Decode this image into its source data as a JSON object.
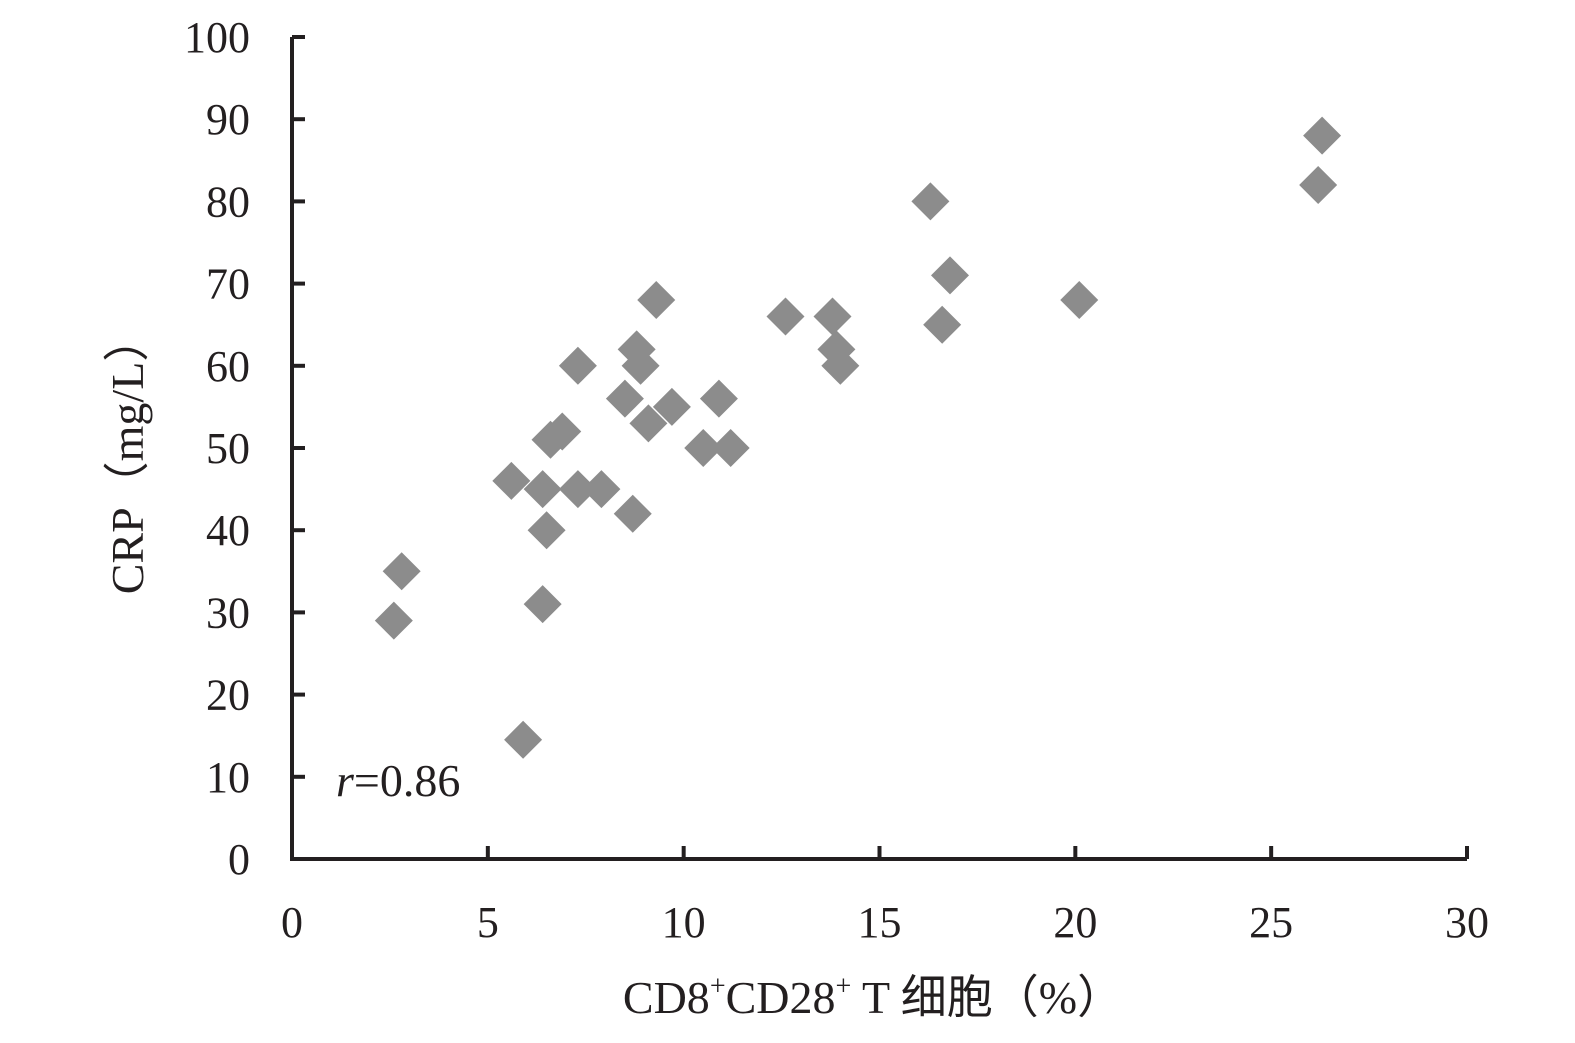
{
  "chart_data": {
    "type": "scatter",
    "title": "",
    "xlabel_parts": {
      "a": "CD8",
      "sup1": "+",
      "b": "CD28",
      "sup2": "+",
      "c": " T 细胞（%）"
    },
    "ylabel": "CRP（mg/L）",
    "xlim": [
      0,
      30
    ],
    "ylim": [
      0,
      100
    ],
    "x_ticks": [
      0,
      5,
      10,
      15,
      20,
      25,
      30
    ],
    "y_ticks": [
      0,
      10,
      20,
      30,
      40,
      50,
      60,
      70,
      80,
      90,
      100
    ],
    "grid": false,
    "legend": "none",
    "marker": "diamond",
    "marker_color": "#8c8c8c",
    "annotation": {
      "italic": "r",
      "rest": "=0.86"
    },
    "series": [
      {
        "points": [
          {
            "x": 2.6,
            "y": 29
          },
          {
            "x": 2.8,
            "y": 35
          },
          {
            "x": 5.6,
            "y": 46
          },
          {
            "x": 5.9,
            "y": 14.5
          },
          {
            "x": 6.4,
            "y": 31
          },
          {
            "x": 6.4,
            "y": 45
          },
          {
            "x": 6.5,
            "y": 40
          },
          {
            "x": 6.6,
            "y": 51
          },
          {
            "x": 6.9,
            "y": 52
          },
          {
            "x": 7.3,
            "y": 45
          },
          {
            "x": 7.3,
            "y": 60
          },
          {
            "x": 7.9,
            "y": 45
          },
          {
            "x": 8.5,
            "y": 56
          },
          {
            "x": 8.7,
            "y": 42
          },
          {
            "x": 8.8,
            "y": 62
          },
          {
            "x": 8.9,
            "y": 60
          },
          {
            "x": 9.1,
            "y": 53
          },
          {
            "x": 9.3,
            "y": 68
          },
          {
            "x": 9.7,
            "y": 55
          },
          {
            "x": 10.5,
            "y": 50
          },
          {
            "x": 10.9,
            "y": 56
          },
          {
            "x": 11.2,
            "y": 50
          },
          {
            "x": 12.6,
            "y": 66
          },
          {
            "x": 13.8,
            "y": 66
          },
          {
            "x": 13.9,
            "y": 62
          },
          {
            "x": 14.0,
            "y": 60
          },
          {
            "x": 16.3,
            "y": 80
          },
          {
            "x": 16.6,
            "y": 65
          },
          {
            "x": 16.8,
            "y": 71
          },
          {
            "x": 20.1,
            "y": 68
          },
          {
            "x": 26.2,
            "y": 82
          },
          {
            "x": 26.3,
            "y": 88
          }
        ]
      }
    ]
  }
}
